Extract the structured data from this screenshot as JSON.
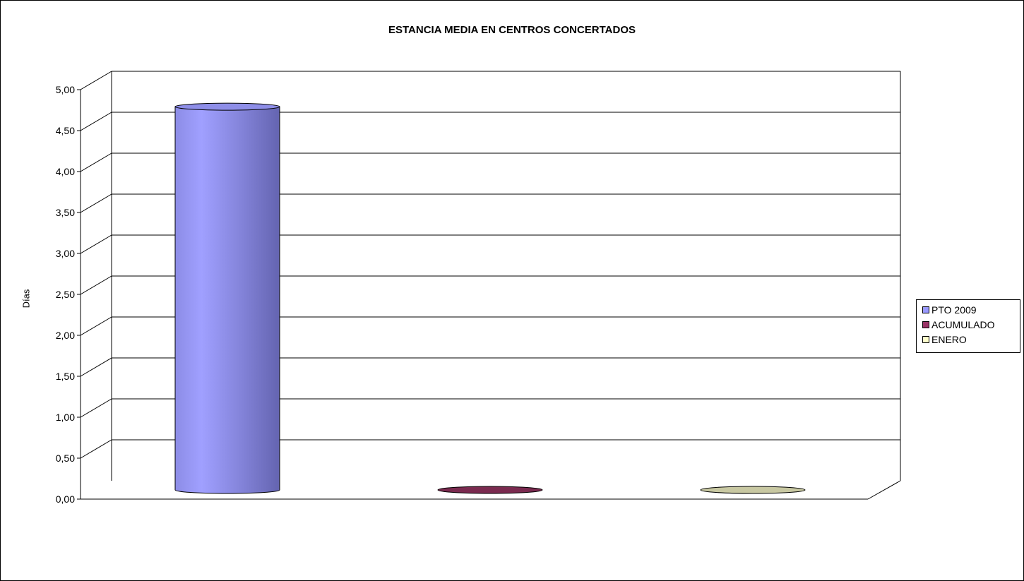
{
  "chart_data": {
    "type": "bar",
    "style": "3d-cylinder",
    "title": "ESTANCIA MEDIA EN CENTROS CONCERTADOS",
    "ylabel": "Días",
    "xlabel": "",
    "ylim": [
      0,
      5
    ],
    "y_ticks": [
      "0,00",
      "0,50",
      "1,00",
      "1,50",
      "2,00",
      "2,50",
      "3,00",
      "3,50",
      "4,00",
      "4,50",
      "5,00"
    ],
    "grid": true,
    "legend_position": "right",
    "series": [
      {
        "name": "PTO 2009",
        "value": 4.68,
        "color": "#9999ff"
      },
      {
        "name": "ACUMULADO",
        "value": 0,
        "color": "#993366"
      },
      {
        "name": "ENERO",
        "value": 0,
        "color": "#ffffcc"
      }
    ]
  }
}
